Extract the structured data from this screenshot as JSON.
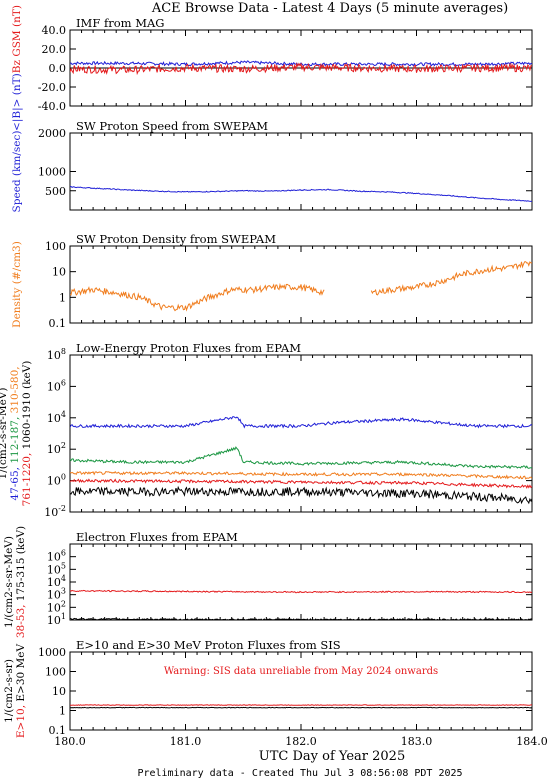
{
  "page": {
    "title": "ACE Browse Data - Latest 4 Days (5 minute averages)",
    "footer": "Preliminary data - Created Thu Jul  3 08:56:08 PDT 2025"
  },
  "colors": {
    "blue": "#1f1fd6",
    "red": "#e41a1c",
    "green": "#1a9641",
    "orange": "#f07d1e",
    "black": "#000000",
    "warning": "#e41a1c"
  },
  "x_axis": {
    "label": "UTC Day of Year 2025",
    "range": [
      180.0,
      184.0
    ],
    "ticks": [
      "180.0",
      "181.0",
      "182.0",
      "183.0",
      "184.0"
    ]
  },
  "chart_data": [
    {
      "type": "line",
      "panel": "imf",
      "title": "IMF from MAG",
      "scale": "linear",
      "ylim": [
        -40,
        40
      ],
      "yticks": [
        "40.0",
        "20.0",
        "0.0",
        "-20.0",
        "-40.0"
      ],
      "ylabel_parts": [
        {
          "text": "<|B|> (nT)",
          "color": "blue"
        },
        {
          "text": "Bz GSM (nT)",
          "color": "red"
        }
      ],
      "series": [
        {
          "name": "<|B|>",
          "color": "blue",
          "x": [
            180.0,
            180.5,
            181.0,
            181.5,
            182.0,
            182.5,
            183.0,
            183.5,
            184.0
          ],
          "y": [
            5,
            5,
            4,
            6,
            4,
            4,
            4,
            4,
            5
          ]
        },
        {
          "name": "Bz GSM",
          "color": "red",
          "x": [
            180.0,
            180.5,
            181.0,
            181.5,
            182.0,
            182.5,
            183.0,
            183.5,
            184.0
          ],
          "y": [
            -1,
            -2,
            0,
            -1,
            1,
            0,
            -1,
            0,
            0
          ]
        }
      ]
    },
    {
      "type": "line",
      "panel": "speed",
      "title": "SW Proton Speed from SWEPAM",
      "scale": "linear",
      "ylim": [
        0,
        2000
      ],
      "yticks": [
        "2000",
        "1000",
        "500"
      ],
      "ylabel_parts": [
        {
          "text": "Speed (km/sec)",
          "color": "blue"
        }
      ],
      "series": [
        {
          "name": "Speed",
          "color": "blue",
          "x": [
            180.0,
            180.25,
            180.5,
            180.75,
            181.0,
            181.25,
            181.5,
            181.75,
            182.0,
            182.25,
            182.5,
            182.75,
            183.0,
            183.25,
            183.5,
            183.75,
            184.0
          ],
          "y": [
            600,
            560,
            520,
            490,
            470,
            480,
            500,
            490,
            520,
            530,
            490,
            470,
            430,
            380,
            320,
            270,
            230
          ]
        }
      ]
    },
    {
      "type": "line",
      "panel": "density",
      "title": "SW Proton Density from SWEPAM",
      "scale": "log",
      "ylim": [
        0.1,
        100
      ],
      "yticks": [
        "100",
        "10",
        "1",
        "0.1"
      ],
      "ylabel_parts": [
        {
          "text": "Density (#/cm3)",
          "color": "orange"
        }
      ],
      "series": [
        {
          "name": "Density",
          "color": "orange",
          "x": [
            180.0,
            180.2,
            180.4,
            180.6,
            180.8,
            181.0,
            181.2,
            181.4,
            181.6,
            181.8,
            182.0,
            182.2,
            182.4,
            182.6,
            182.8,
            183.0,
            183.2,
            183.4,
            183.6,
            183.8,
            184.0
          ],
          "y": [
            1.5,
            2.0,
            1.5,
            1.0,
            0.4,
            0.4,
            1.0,
            2.0,
            2.0,
            2.5,
            2.5,
            1.5,
            null,
            1.5,
            2.0,
            2.5,
            4.0,
            8.0,
            12.0,
            14.0,
            25.0
          ]
        }
      ]
    },
    {
      "type": "line",
      "panel": "epam-protons",
      "title": "Low-Energy Proton Fluxes from EPAM",
      "scale": "log",
      "ylim": [
        0.01,
        100000000
      ],
      "yticks": [
        "10^8",
        "10^6",
        "10^4",
        "10^2",
        "10^0",
        "10^-2"
      ],
      "ylabel_lines": [
        [
          {
            "text": "1/(cm2-s-sr-MeV)",
            "color": "black"
          }
        ],
        [
          {
            "text": "47-65, ",
            "color": "blue"
          },
          {
            "text": "112-187, ",
            "color": "green"
          },
          {
            "text": "310-580,",
            "color": "orange"
          }
        ],
        [
          {
            "text": "761-1220, ",
            "color": "red"
          },
          {
            "text": "1060-1910 (keV)",
            "color": "black"
          }
        ]
      ],
      "series": [
        {
          "name": "47-65",
          "color": "blue",
          "x": [
            180.0,
            181.0,
            181.45,
            181.5,
            182.0,
            182.3,
            182.9,
            183.5,
            184.0
          ],
          "y": [
            3000,
            3000,
            12000,
            3000,
            3000,
            5000,
            8000,
            3000,
            3000
          ]
        },
        {
          "name": "112-187",
          "color": "green",
          "x": [
            180.0,
            180.5,
            181.0,
            181.45,
            181.5,
            182.0,
            182.9,
            183.5,
            184.0
          ],
          "y": [
            20,
            15,
            15,
            120,
            15,
            12,
            15,
            8,
            7
          ]
        },
        {
          "name": "310-580",
          "color": "orange",
          "x": [
            180.0,
            181.0,
            182.0,
            183.0,
            184.0
          ],
          "y": [
            3,
            3,
            2.5,
            2.5,
            1.5
          ]
        },
        {
          "name": "761-1220",
          "color": "red",
          "x": [
            180.0,
            181.0,
            182.0,
            183.0,
            184.0
          ],
          "y": [
            1,
            0.9,
            0.8,
            0.7,
            0.4
          ]
        },
        {
          "name": "1060-1910",
          "color": "black",
          "x": [
            180.0,
            181.0,
            182.0,
            183.0,
            184.0
          ],
          "y": [
            0.2,
            0.2,
            0.2,
            0.15,
            0.06
          ]
        }
      ]
    },
    {
      "type": "line",
      "panel": "epam-electrons",
      "title": "Electron Fluxes from EPAM",
      "scale": "log",
      "ylim": [
        10,
        10000000
      ],
      "yticks": [
        "10^6",
        "10^5",
        "10^4",
        "10^3",
        "10^2",
        "10^1"
      ],
      "ylabel_lines": [
        [
          {
            "text": "1/(cm2-s-sr-MeV)",
            "color": "black"
          }
        ],
        [
          {
            "text": "38-53, ",
            "color": "red"
          },
          {
            "text": "175-315 (keV)",
            "color": "black"
          }
        ]
      ],
      "series": [
        {
          "name": "38-53",
          "color": "red",
          "x": [
            180.0,
            181.0,
            182.0,
            183.0,
            184.0
          ],
          "y": [
            2000,
            1800,
            1600,
            1700,
            1600
          ]
        },
        {
          "name": "175-315",
          "color": "black",
          "x": [
            180.0,
            181.0,
            182.0,
            183.0,
            184.0
          ],
          "y": [
            12,
            11,
            11,
            11,
            11
          ]
        }
      ]
    },
    {
      "type": "line",
      "panel": "sis",
      "title": "E>10 and E>30 MeV Proton Fluxes from SIS",
      "scale": "log",
      "ylim": [
        0.1,
        1000
      ],
      "yticks": [
        "1000",
        "100",
        "10",
        "1",
        "0.1"
      ],
      "warning": "Warning: SIS data unreliable from May 2024 onwards",
      "ylabel_lines": [
        [
          {
            "text": "1/(cm2-s-sr)",
            "color": "black"
          }
        ],
        [
          {
            "text": "E>10, ",
            "color": "red"
          },
          {
            "text": "E>30 MeV",
            "color": "black"
          }
        ]
      ],
      "series": [
        {
          "name": "E>10",
          "color": "red",
          "x": [
            180.0,
            181.0,
            182.0,
            183.0,
            184.0
          ],
          "y": [
            1.9,
            1.9,
            1.9,
            1.9,
            1.9
          ]
        },
        {
          "name": "E>30",
          "color": "black",
          "x": [
            180.0,
            181.0,
            182.0,
            183.0,
            184.0
          ],
          "y": [
            1.4,
            1.4,
            1.4,
            1.4,
            1.4
          ]
        }
      ]
    }
  ]
}
